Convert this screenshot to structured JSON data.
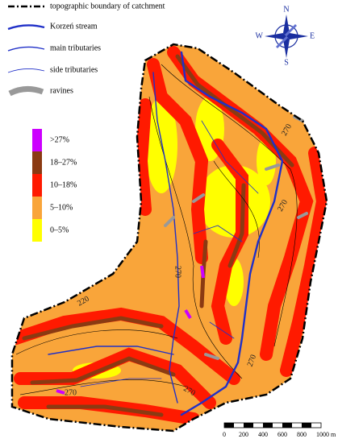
{
  "legend": {
    "lines": [
      {
        "label": "topographic boundary of catchment"
      },
      {
        "label": "Korzeń stream"
      },
      {
        "label": "main tributaries"
      },
      {
        "label": "side tributaries"
      },
      {
        "label": "ravines"
      }
    ],
    "slope_classes": [
      {
        "label": ">27%",
        "color": "#cc00ff"
      },
      {
        "label": "18–27%",
        "color": "#8b3a12"
      },
      {
        "label": "10–18%",
        "color": "#ff1a00"
      },
      {
        "label": "5–10%",
        "color": "#f9a53a"
      },
      {
        "label": "0–5%",
        "color": "#ffff00"
      }
    ]
  },
  "compass": {
    "n": "N",
    "e": "E",
    "s": "S",
    "w": "W"
  },
  "contour_labels": [
    "270",
    "270",
    "270",
    "220",
    "270",
    "270",
    "270"
  ],
  "scale_bar": {
    "labels": [
      "0",
      "200",
      "400",
      "600",
      "800",
      "1000 m"
    ]
  }
}
